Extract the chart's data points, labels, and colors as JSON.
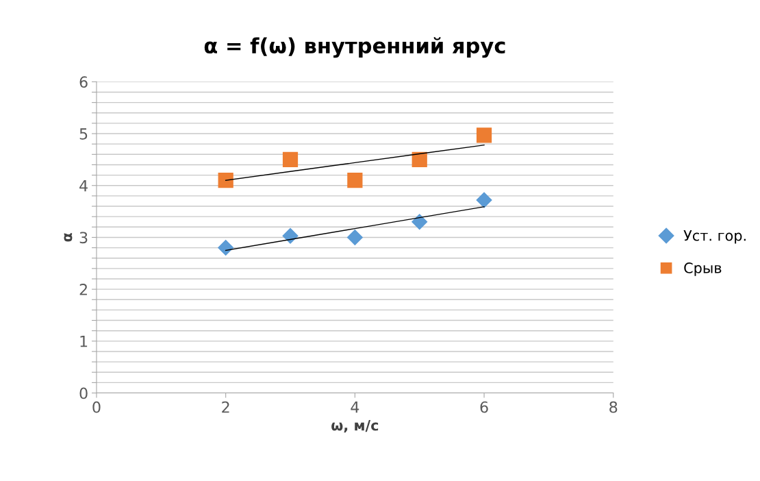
{
  "chart_data": {
    "type": "scatter",
    "title": "α = f(ω) внутренний ярус",
    "xlabel": "ω, м/с",
    "ylabel": "α",
    "xlim": [
      0,
      8
    ],
    "xticks": [
      0,
      2,
      4,
      6,
      8
    ],
    "ylim": [
      0,
      6
    ],
    "yticks": [
      0,
      {
        "value": 0.2,
        "label": null
      },
      {
        "value": 0.4,
        "label": null
      },
      {
        "value": 0.6,
        "label": null
      },
      {
        "value": 0.8,
        "label": null
      },
      1,
      {
        "value": 1.2,
        "label": null
      },
      {
        "value": 1.4,
        "label": null
      },
      {
        "value": 1.6,
        "label": null
      },
      {
        "value": 1.8,
        "label": null
      },
      2,
      {
        "value": 2.2,
        "label": null
      },
      {
        "value": 2.4,
        "label": null
      },
      {
        "value": 2.6,
        "label": null
      },
      {
        "value": 2.8,
        "label": null
      },
      3,
      {
        "value": 3.2,
        "label": null
      },
      {
        "value": 3.4,
        "label": null
      },
      {
        "value": 3.6,
        "label": null
      },
      {
        "value": 3.8,
        "label": null
      },
      4,
      {
        "value": 4.2,
        "label": null
      },
      {
        "value": 4.4,
        "label": null
      },
      {
        "value": 4.6,
        "label": null
      },
      {
        "value": 4.8,
        "label": null
      },
      5,
      {
        "value": 5.2,
        "label": null
      },
      {
        "value": 5.4,
        "label": null
      },
      {
        "value": 5.6,
        "label": null
      },
      {
        "value": 5.8,
        "label": null
      },
      6
    ],
    "grid": "y",
    "legend": "right",
    "x": [
      2,
      3,
      4,
      5,
      6
    ],
    "series": [
      {
        "name": "Уст. гор.",
        "color": "#5b9bd5",
        "marker": "diamond",
        "values": [
          2.8,
          3.03,
          3.0,
          3.3,
          3.72
        ]
      },
      {
        "name": "Срыв",
        "color": "#ed7d31",
        "marker": "square",
        "values": [
          4.1,
          4.5,
          4.1,
          4.5,
          4.97
        ]
      },
      {
        "type": "line",
        "color": "#000000",
        "marker": "none",
        "values": [
          2.75,
          2.96,
          3.17,
          3.38,
          3.59
        ]
      },
      {
        "type": "line",
        "color": "#000000",
        "marker": "none",
        "values": [
          4.1,
          4.27,
          4.44,
          4.61,
          4.78
        ]
      }
    ]
  }
}
